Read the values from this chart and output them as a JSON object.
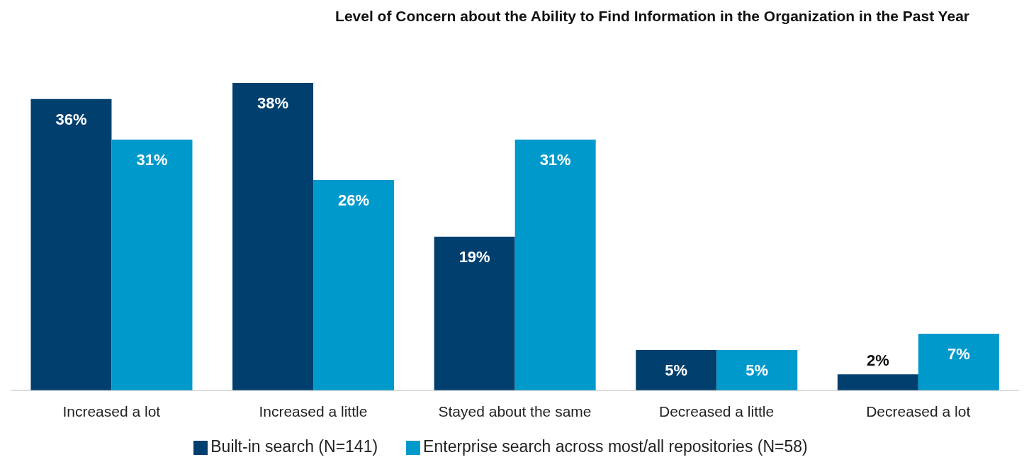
{
  "chart_data": {
    "type": "bar",
    "title": "Level of Concern about the Ability to Find Information in the Organization in the Past Year",
    "categories": [
      "Increased a lot",
      "Increased a little",
      "Stayed about the same",
      "Decreased a little",
      "Decreased a lot"
    ],
    "series": [
      {
        "name": "Built-in search (N=141)",
        "color": "#003f6e",
        "values": [
          36,
          38,
          19,
          5,
          2
        ],
        "value_labels": [
          "36%",
          "38%",
          "19%",
          "5%",
          "2%"
        ]
      },
      {
        "name": "Enterprise search across most/all repositories (N=58)",
        "color": "#0099cc",
        "values": [
          31,
          26,
          31,
          5,
          7
        ],
        "value_labels": [
          "31%",
          "26%",
          "31%",
          "5%",
          "7%"
        ]
      }
    ],
    "legend": "bottom",
    "grid": false
  }
}
